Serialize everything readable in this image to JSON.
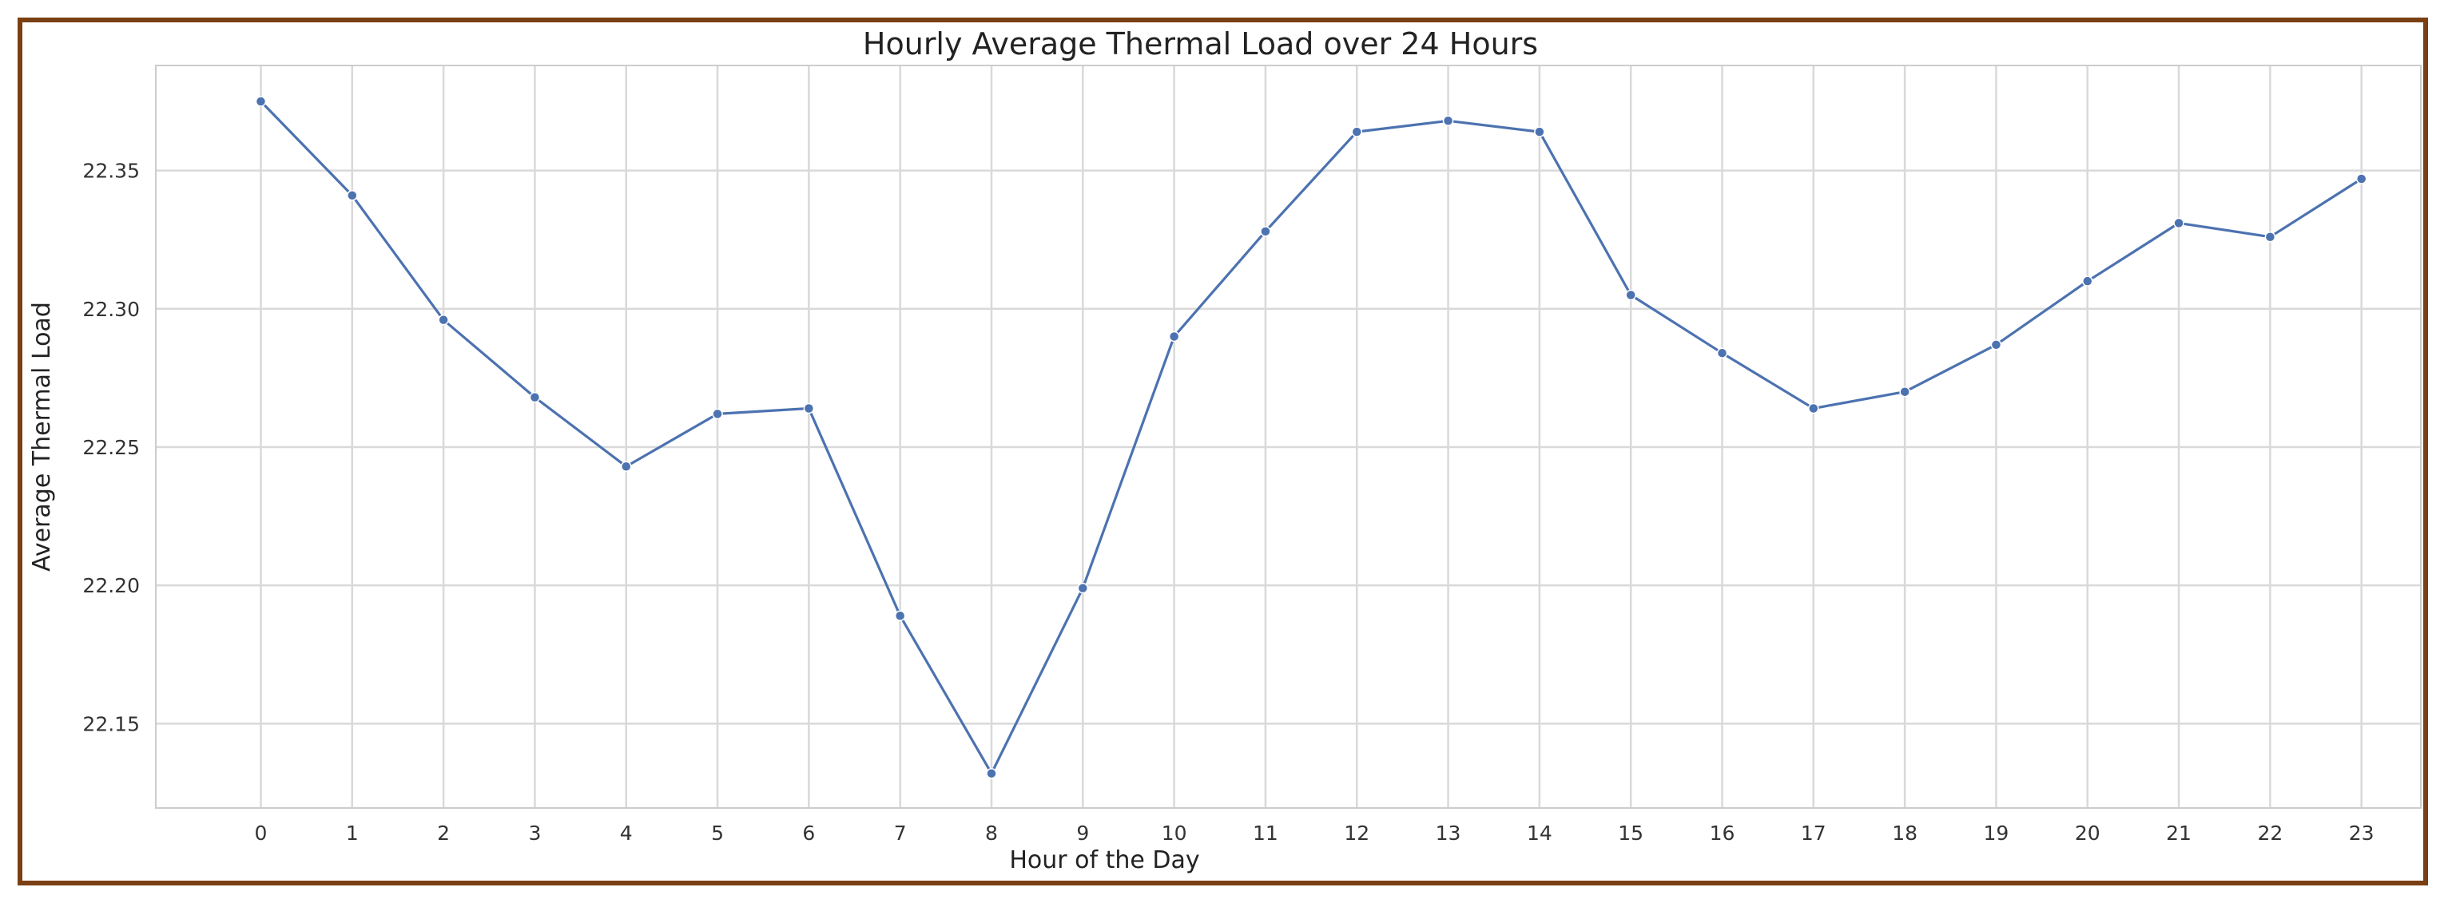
{
  "chart_data": {
    "type": "line",
    "title": "Hourly Average Thermal Load over 24 Hours",
    "xlabel": "Hour of the Day",
    "ylabel": "Average Thermal Load",
    "x": [
      0,
      1,
      2,
      3,
      4,
      5,
      6,
      7,
      8,
      9,
      10,
      11,
      12,
      13,
      14,
      15,
      16,
      17,
      18,
      19,
      20,
      21,
      22,
      23
    ],
    "series": [
      {
        "values": [
          22.375,
          22.341,
          22.296,
          22.268,
          22.243,
          22.262,
          22.264,
          22.189,
          22.132,
          22.199,
          22.29,
          22.328,
          22.364,
          22.368,
          22.364,
          22.305,
          22.284,
          22.264,
          22.27,
          22.287,
          22.31,
          22.331,
          22.326,
          22.347
        ],
        "color": "#4c72b0"
      }
    ],
    "xlim": [
      -1.15,
      23.65
    ],
    "ylim": [
      22.1195,
      22.388
    ],
    "yticks": [
      22.15,
      22.2,
      22.25,
      22.3,
      22.35
    ],
    "ytick_labels": [
      "22.15",
      "22.20",
      "22.25",
      "22.30",
      "22.35"
    ],
    "xtick_labels": [
      "0",
      "1",
      "2",
      "3",
      "4",
      "5",
      "6",
      "7",
      "8",
      "9",
      "10",
      "11",
      "12",
      "13",
      "14",
      "15",
      "16",
      "17",
      "18",
      "19",
      "20",
      "21",
      "22",
      "23"
    ],
    "grid": true,
    "legend": false,
    "colors": {
      "frame_border": "#7a3f12",
      "grid": "#d9d9d9",
      "axes_edge": "#cccccc",
      "line": "#4c72b0"
    }
  }
}
